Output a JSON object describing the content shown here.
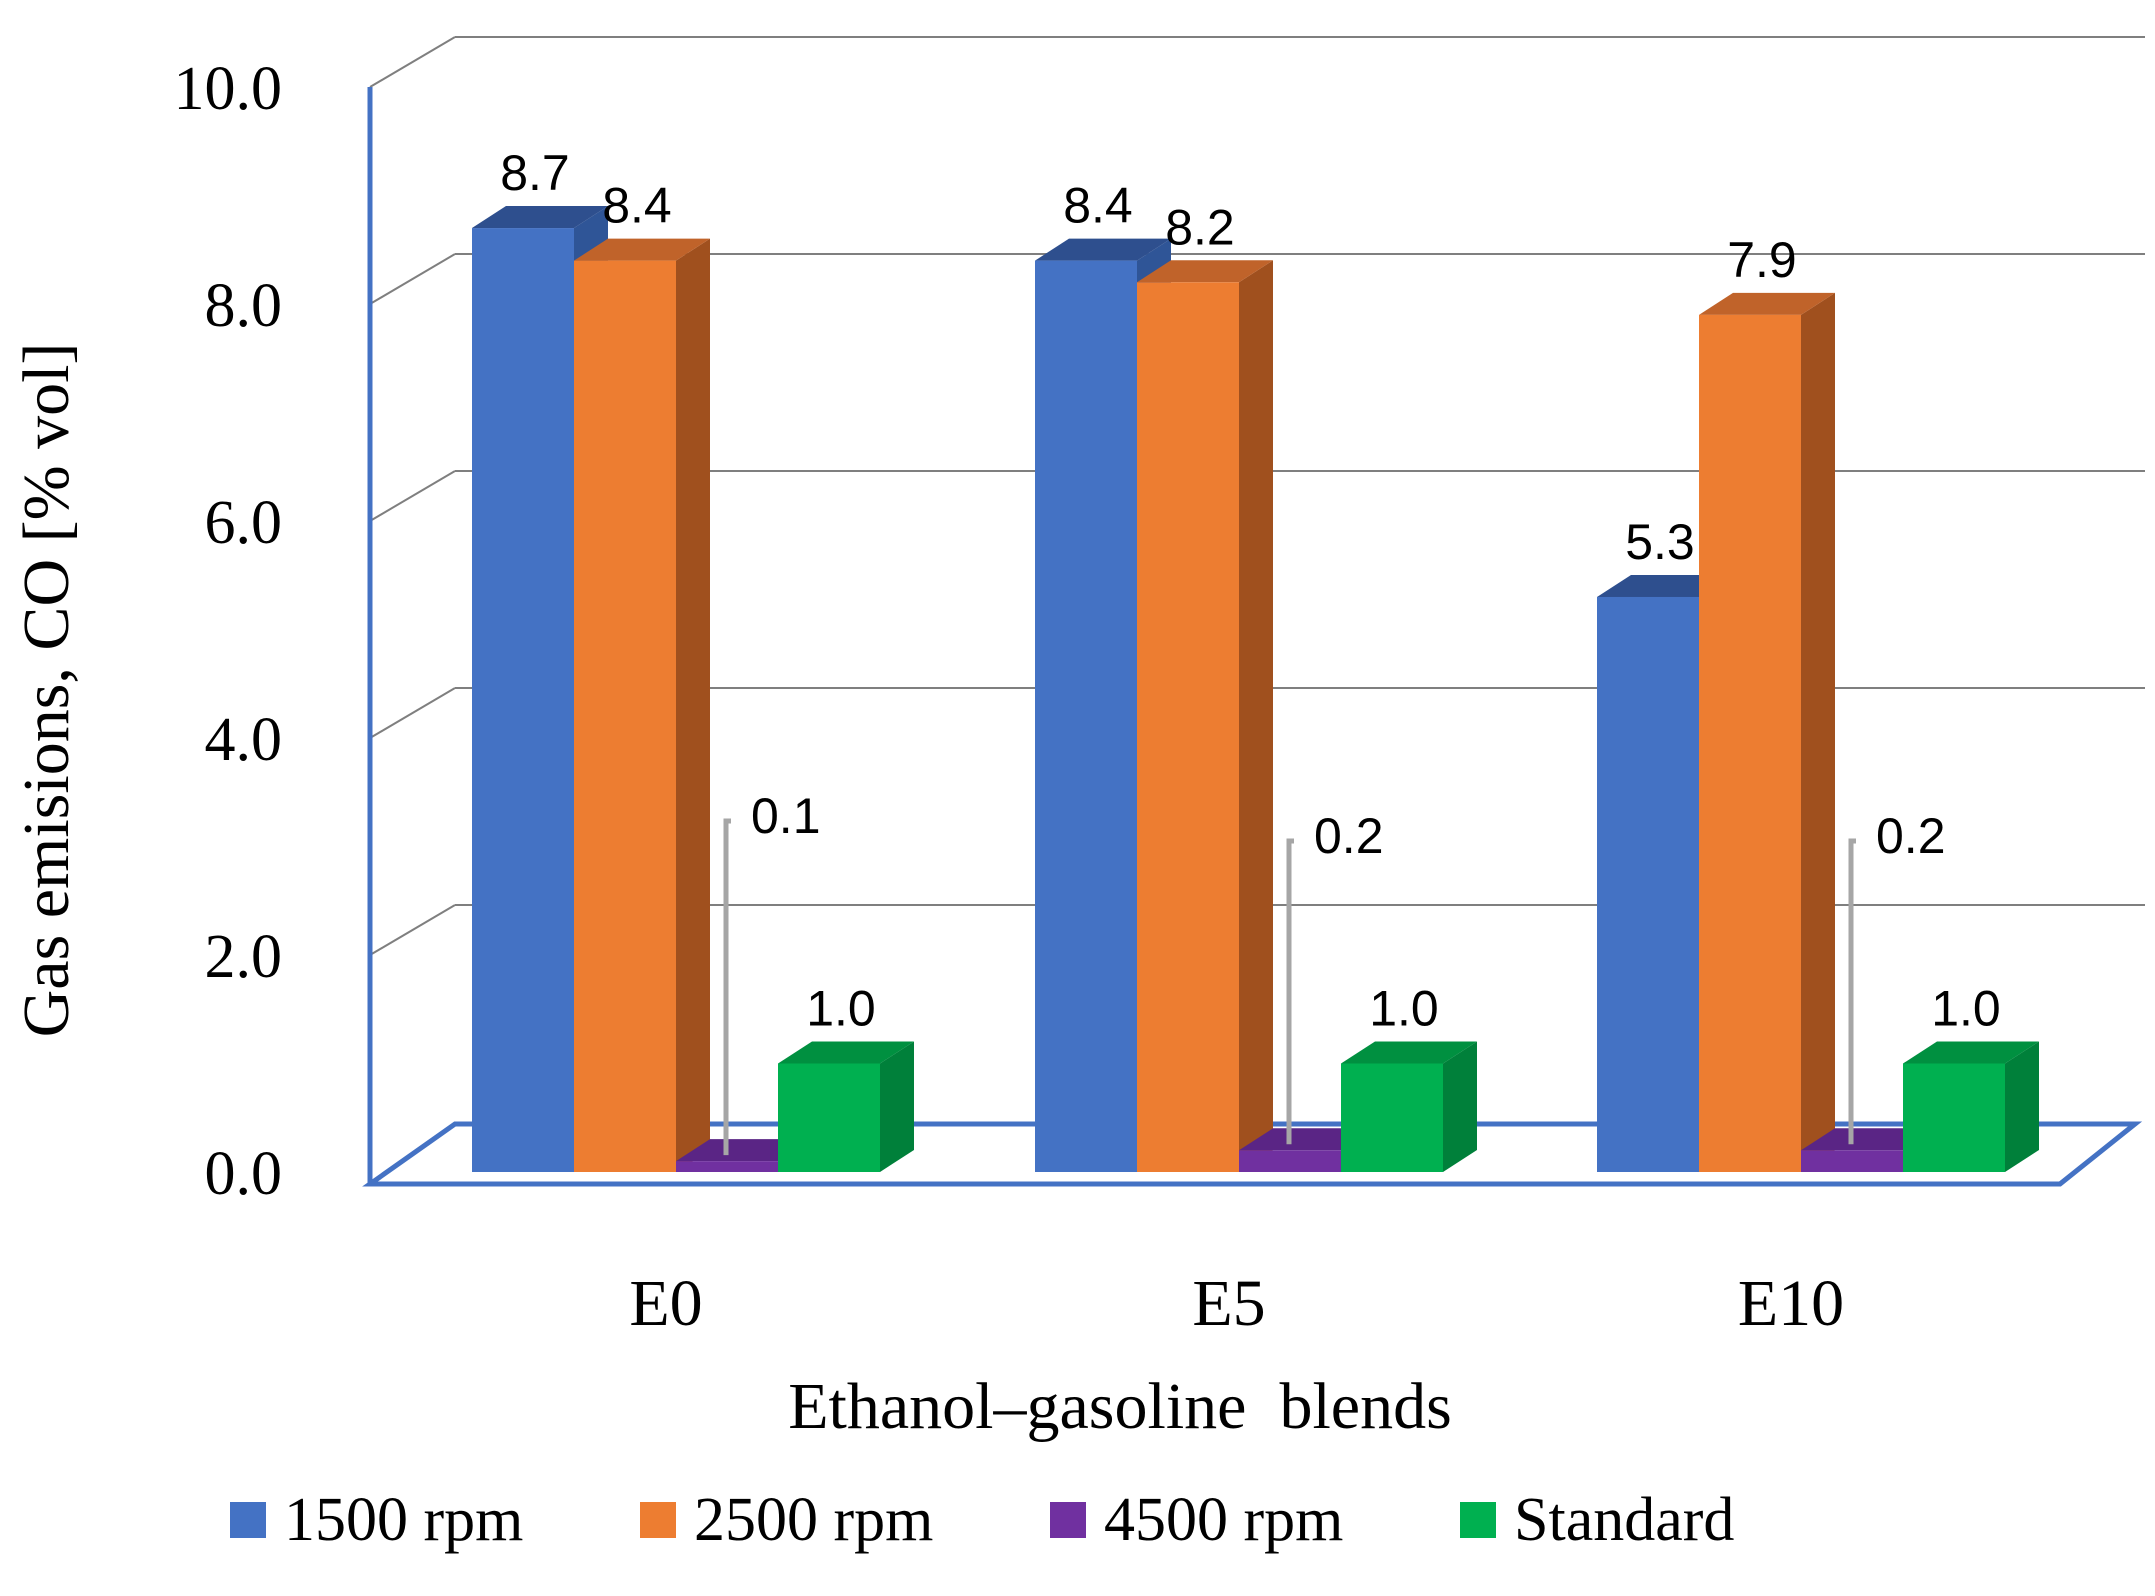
{
  "chart_data": {
    "type": "bar",
    "style": "3d-clustered-column",
    "title": "",
    "categories": [
      "E0",
      "E5",
      "E10"
    ],
    "series": [
      {
        "name": "1500 rpm",
        "values": [
          8.7,
          8.4,
          5.3
        ],
        "labels": [
          "8.7",
          "8.4",
          "5.3"
        ],
        "color": "#4472C4",
        "side_color": "#2F5597",
        "top_color": "#2E4F8E"
      },
      {
        "name": "2500 rpm",
        "values": [
          8.4,
          8.2,
          7.9
        ],
        "labels": [
          "8.4",
          "8.2",
          "7.9"
        ],
        "color": "#ED7D31",
        "side_color": "#A0501E",
        "top_color": "#C0632A"
      },
      {
        "name": "4500 rpm",
        "values": [
          0.1,
          0.2,
          0.2
        ],
        "labels": [
          "0.1",
          "0.2",
          "0.2"
        ],
        "color": "#7030A0",
        "side_color": "#4B1F6E",
        "top_color": "#5A2585"
      },
      {
        "name": "Standard",
        "values": [
          1.0,
          1.0,
          1.0
        ],
        "labels": [
          "1.0",
          "1.0",
          "1.0"
        ],
        "color": "#00B050",
        "side_color": "#00803A",
        "top_color": "#009040"
      }
    ],
    "yticks": [
      "0.0",
      "2.0",
      "4.0",
      "6.0",
      "8.0",
      "10.0"
    ],
    "ylim": [
      0,
      10
    ],
    "xlabel": "Ethanol–gasoline  blends",
    "ylabel": "Gas emisions,  CO [% vol]",
    "legend_position": "bottom",
    "grid": true
  },
  "colors": {
    "axis_blue": "#4472C4",
    "gridline": "#7F7F7F",
    "leader_line": "#A6A6A6"
  }
}
